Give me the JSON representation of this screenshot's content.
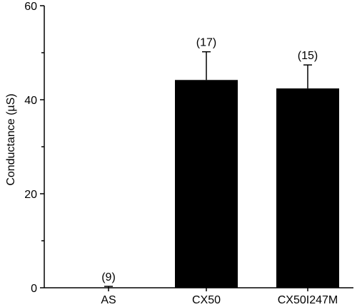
{
  "chart_data": {
    "type": "bar",
    "title": "",
    "xlabel": "",
    "ylabel": "Conductance (µS)",
    "categories": [
      "AS",
      "CX50",
      "CX50I247M"
    ],
    "values": [
      0,
      44.2,
      42.4
    ],
    "error_upper": [
      0.3,
      6,
      5
    ],
    "n_labels": [
      "(9)",
      "(17)",
      "(15)"
    ],
    "ylim": [
      0,
      60
    ],
    "yticks": [
      0,
      20,
      40,
      60
    ],
    "y_minor_step": 10,
    "grid": false,
    "legend": "none",
    "colors": {
      "bar": "#000000",
      "axis": "#000000"
    }
  }
}
